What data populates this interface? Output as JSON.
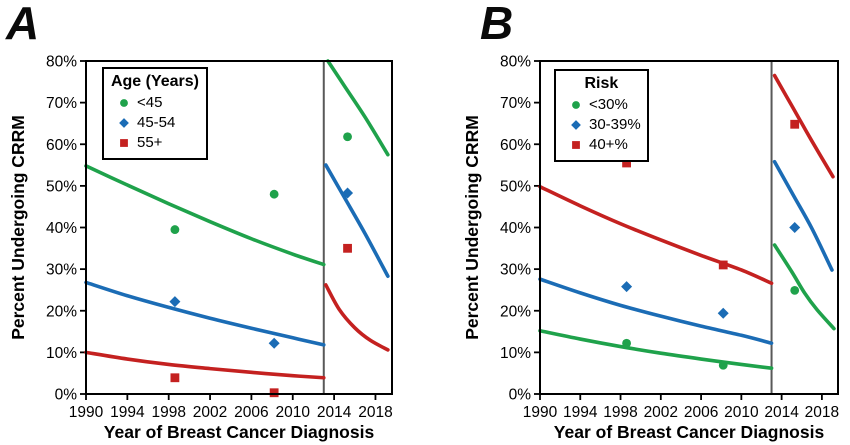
{
  "figure_title": "",
  "colors": {
    "green": "#1FA24B",
    "blue": "#1B6CB5",
    "red": "#C42120",
    "divider_line": "#595959",
    "axis": "#000000",
    "background": "#FFFFFF"
  },
  "chart_data": [
    {
      "type": "line",
      "panel_label": "A",
      "xlabel": "Year of Breast Cancer Diagnosis",
      "ylabel": "Percent Undergoing CRRM",
      "xlim": [
        1990,
        2019.6
      ],
      "ylim": [
        0,
        80
      ],
      "x_ticks": [
        1990,
        1994,
        1998,
        2002,
        2006,
        2010,
        2014,
        2018
      ],
      "y_ticks": [
        0,
        10,
        20,
        30,
        40,
        50,
        60,
        70,
        80
      ],
      "y_tick_suffix": "%",
      "grid": "off",
      "divider_year": 2013,
      "legend_title": "Age (Years)",
      "legend_position": "top-left",
      "series": [
        {
          "name": "<45",
          "color": "#1FA24B",
          "marker": "circle",
          "trend_pre_2013": [
            [
              1990,
              54.8
            ],
            [
              1994,
              50.2
            ],
            [
              1998,
              45.7
            ],
            [
              2002,
              41.4
            ],
            [
              2006,
              37.3
            ],
            [
              2010,
              33.6
            ],
            [
              2013,
              31.1
            ]
          ],
          "trend_post_2013": [
            [
              2013.4,
              80
            ],
            [
              2015,
              74
            ],
            [
              2017,
              66.5
            ],
            [
              2019.2,
              57.5
            ]
          ],
          "data_points": [
            [
              1998.6,
              39.5
            ],
            [
              2008.2,
              48
            ],
            [
              2015.3,
              61.8
            ]
          ]
        },
        {
          "name": "45-54",
          "color": "#1B6CB5",
          "marker": "diamond",
          "trend_pre_2013": [
            [
              1990,
              26.8
            ],
            [
              1994,
              23.6
            ],
            [
              1998,
              20.8
            ],
            [
              2002,
              18.2
            ],
            [
              2006,
              15.8
            ],
            [
              2010,
              13.5
            ],
            [
              2013,
              11.8
            ]
          ],
          "trend_post_2013": [
            [
              2013.2,
              55
            ],
            [
              2015,
              47.2
            ],
            [
              2017,
              38.5
            ],
            [
              2019.2,
              28.3
            ]
          ],
          "data_points": [
            [
              1998.6,
              22.2
            ],
            [
              2008.2,
              12.2
            ],
            [
              2015.3,
              48.3
            ]
          ]
        },
        {
          "name": "55+",
          "color": "#C42120",
          "marker": "square",
          "trend_pre_2013": [
            [
              1990,
              10
            ],
            [
              1994,
              8.4
            ],
            [
              1998,
              7.1
            ],
            [
              2002,
              6.1
            ],
            [
              2006,
              5.2
            ],
            [
              2010,
              4.4
            ],
            [
              2013,
              3.9
            ]
          ],
          "trend_post_2013": [
            [
              2013.2,
              26.2
            ],
            [
              2014.5,
              20.3
            ],
            [
              2016,
              15.9
            ],
            [
              2017.5,
              12.9
            ],
            [
              2019.2,
              10.6
            ]
          ],
          "data_points": [
            [
              1998.6,
              3.9
            ],
            [
              2008.2,
              0.3
            ],
            [
              2015.3,
              35
            ]
          ]
        }
      ]
    },
    {
      "type": "line",
      "panel_label": "B",
      "xlabel": "Year of Breast Cancer Diagnosis",
      "ylabel": "Percent Undergoing CRRM",
      "xlim": [
        1990,
        2019.6
      ],
      "ylim": [
        0,
        80
      ],
      "x_ticks": [
        1990,
        1994,
        1998,
        2002,
        2006,
        2010,
        2014,
        2018
      ],
      "y_ticks": [
        0,
        10,
        20,
        30,
        40,
        50,
        60,
        70,
        80
      ],
      "y_tick_suffix": "%",
      "grid": "off",
      "divider_year": 2013,
      "legend_title": "Risk",
      "legend_position": "top-left",
      "series": [
        {
          "name": "<30%",
          "color": "#1FA24B",
          "marker": "circle",
          "trend_pre_2013": [
            [
              1990,
              15.2
            ],
            [
              1994,
              13.2
            ],
            [
              1998,
              11.4
            ],
            [
              2002,
              9.8
            ],
            [
              2006,
              8.4
            ],
            [
              2010,
              7.1
            ],
            [
              2013,
              6.2
            ]
          ],
          "trend_post_2013": [
            [
              2013.3,
              35.8
            ],
            [
              2015,
              29.4
            ],
            [
              2016.3,
              24.2
            ],
            [
              2017.5,
              20.3
            ],
            [
              2019.2,
              15.7
            ]
          ],
          "data_points": [
            [
              1998.6,
              12.2
            ],
            [
              2008.2,
              6.9
            ],
            [
              2015.3,
              24.9
            ]
          ]
        },
        {
          "name": "30-39%",
          "color": "#1B6CB5",
          "marker": "diamond",
          "trend_pre_2013": [
            [
              1990,
              27.6
            ],
            [
              1994,
              24.3
            ],
            [
              1998,
              21.3
            ],
            [
              2002,
              18.7
            ],
            [
              2006,
              16.3
            ],
            [
              2010,
              14.1
            ],
            [
              2013,
              12.2
            ]
          ],
          "trend_post_2013": [
            [
              2013.3,
              55.8
            ],
            [
              2015.2,
              47.6
            ],
            [
              2017,
              39.8
            ],
            [
              2019,
              29.8
            ]
          ],
          "data_points": [
            [
              1998.6,
              25.8
            ],
            [
              2008.2,
              19.4
            ],
            [
              2015.3,
              40
            ]
          ]
        },
        {
          "name": "40+%",
          "color": "#C42120",
          "marker": "square",
          "trend_pre_2013": [
            [
              1990,
              49.8
            ],
            [
              1994,
              45.2
            ],
            [
              1998,
              40.9
            ],
            [
              2002,
              37
            ],
            [
              2006,
              33.3
            ],
            [
              2010,
              29.8
            ],
            [
              2013,
              26.6
            ]
          ],
          "trend_post_2013": [
            [
              2013.3,
              76.5
            ],
            [
              2015,
              69.3
            ],
            [
              2017,
              60.8
            ],
            [
              2019.1,
              52.2
            ]
          ],
          "data_points": [
            [
              1998.6,
              55.5
            ],
            [
              2008.2,
              31
            ],
            [
              2015.3,
              64.8
            ]
          ]
        }
      ]
    }
  ]
}
